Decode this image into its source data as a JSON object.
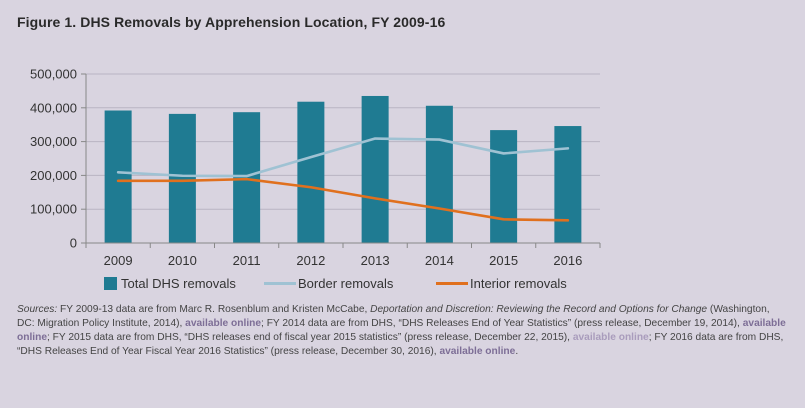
{
  "figure_title": "Figure 1. DHS Removals by Apprehension Location, FY 2009-16",
  "colors": {
    "background": "#d9d4e0",
    "total": "#1f7b92",
    "border": "#9fc2d3",
    "interior": "#e0701e",
    "axis": "#888888",
    "grid": "#b9b4c3"
  },
  "chart_data": {
    "type": "bar",
    "title": "Figure 1. DHS Removals by Apprehension Location, FY 2009-16",
    "xlabel": "",
    "ylabel": "",
    "ylim": [
      0,
      500000
    ],
    "y_ticks": [
      0,
      100000,
      200000,
      300000,
      400000,
      500000
    ],
    "y_tick_labels": [
      "0",
      "100,000",
      "200,000",
      "300,000",
      "400,000",
      "500,000"
    ],
    "categories": [
      "2009",
      "2010",
      "2011",
      "2012",
      "2013",
      "2014",
      "2015",
      "2016"
    ],
    "legend_position": "bottom",
    "series": [
      {
        "name": "Total DHS removals",
        "kind": "bar",
        "values": [
          392000,
          382000,
          387000,
          418000,
          435000,
          406000,
          334000,
          346000
        ]
      },
      {
        "name": "Border removals",
        "kind": "line",
        "values": [
          209000,
          199000,
          198000,
          254000,
          309000,
          306000,
          265000,
          280000
        ]
      },
      {
        "name": "Interior removals",
        "kind": "line",
        "values": [
          184000,
          184000,
          189000,
          165000,
          132000,
          102000,
          70000,
          67000
        ]
      }
    ]
  },
  "sources": {
    "label": "Sources:",
    "t1": " FY 2009-13 data are from Marc R. Rosenblum and Kristen McCabe, ",
    "book_title": "Deportation and Discretion: Reviewing the Record and Options for Change",
    "t2": " (Washington, DC: Migration Policy Institute, 2014), ",
    "link1": "available online",
    "t3": "; FY 2014 data are from DHS, “DHS Releases End of Year Statistics” (press release, December 19, 2014), ",
    "link2": "available online",
    "t4": "; FY 2015 data are from DHS, “DHS releases end of fiscal year 2015 statistics” (press release, December 22, 2015), ",
    "link3": "available online",
    "t5": "; FY 2016 data are from DHS, “DHS Releases End of Year Fiscal Year 2016 Statistics” (press release, December 30, 2016), ",
    "link4": "available online",
    "t6": "."
  }
}
